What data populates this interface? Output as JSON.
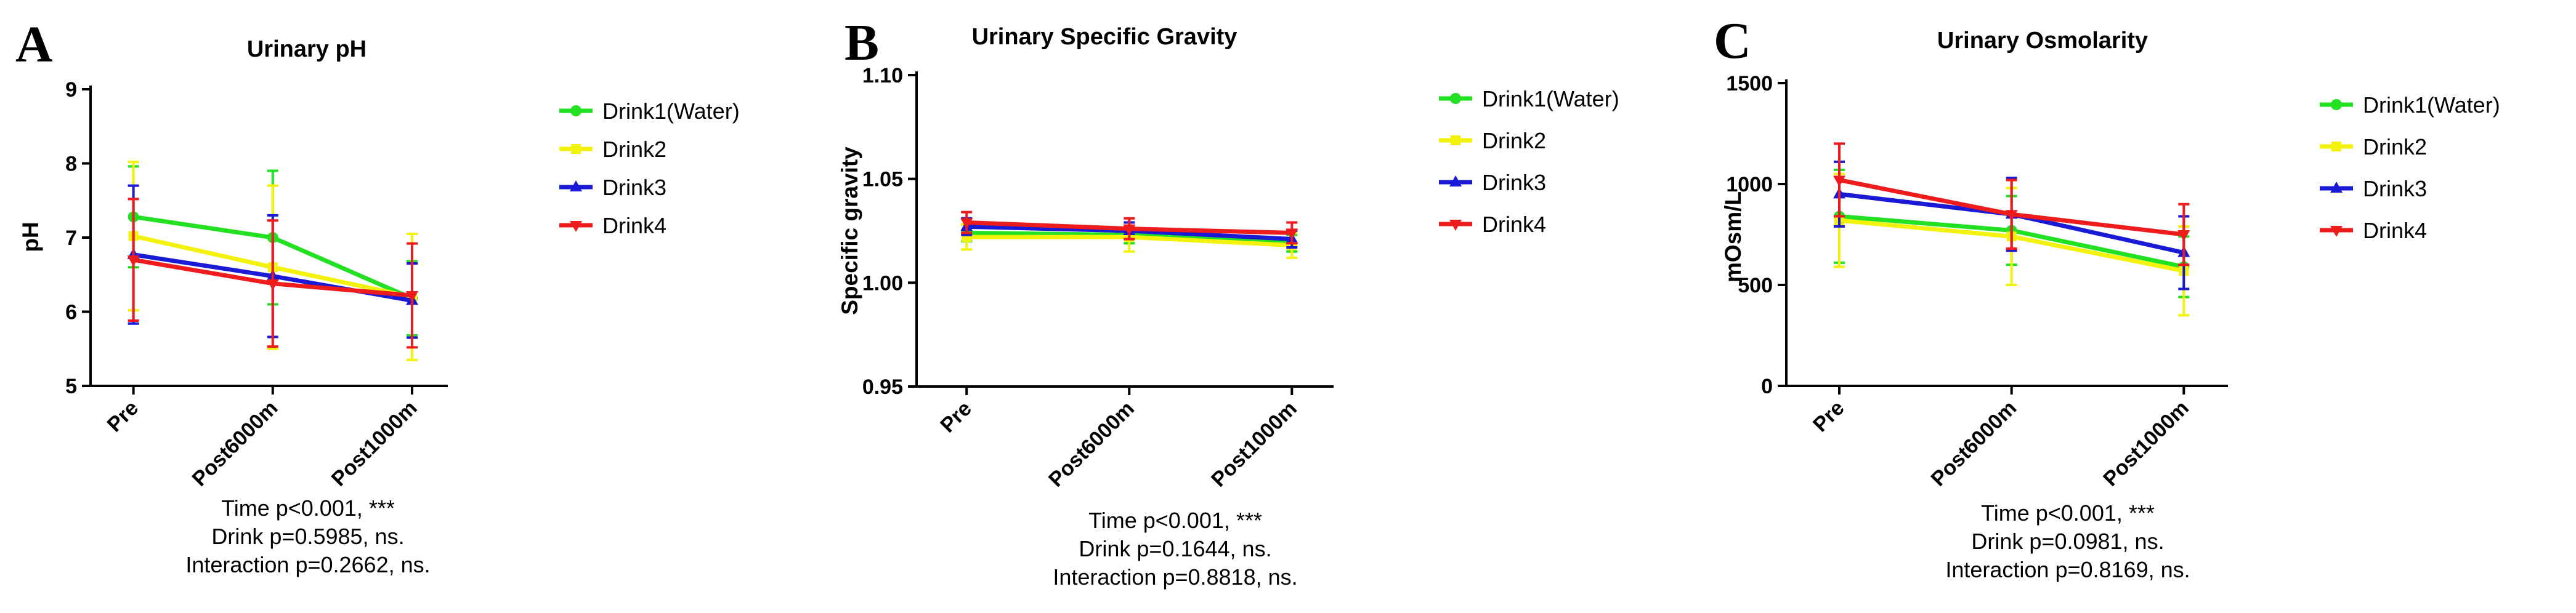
{
  "chart_data": [
    {
      "type": "line",
      "panel": "A",
      "title": "Urinary pH",
      "xlabel": "",
      "ylabel": "pH",
      "categories": [
        "Pre",
        "Post6000m",
        "Post1000m"
      ],
      "ylim": [
        5,
        9
      ],
      "yticks": [
        5,
        6,
        7,
        8,
        9
      ],
      "series": [
        {
          "name": "Drink1(Water)",
          "color": "#22e022",
          "marker": "circle",
          "values": [
            7.28,
            7.0,
            6.18
          ],
          "err": [
            0.68,
            0.9,
            0.5
          ]
        },
        {
          "name": "Drink2",
          "color": "#f2f20a",
          "marker": "square",
          "values": [
            7.02,
            6.6,
            6.2
          ],
          "err": [
            1.0,
            1.1,
            0.85
          ]
        },
        {
          "name": "Drink3",
          "color": "#1a1ad6",
          "marker": "triangle-up",
          "values": [
            6.77,
            6.48,
            6.15
          ],
          "err": [
            0.93,
            0.82,
            0.5
          ]
        },
        {
          "name": "Drink4",
          "color": "#ee1c1c",
          "marker": "triangle-down",
          "values": [
            6.7,
            6.38,
            6.22
          ],
          "err": [
            0.82,
            0.85,
            0.7
          ]
        }
      ],
      "stats": [
        "Time p<0.001, ***",
        "Drink p=0.5985, ns.",
        "Interaction p=0.2662, ns."
      ]
    },
    {
      "type": "line",
      "panel": "B",
      "title": "Urinary Specific Gravity",
      "xlabel": "",
      "ylabel": "Specific gravity",
      "categories": [
        "Pre",
        "Post6000m",
        "Post1000m"
      ],
      "ylim": [
        0.95,
        1.1
      ],
      "yticks": [
        "0.95",
        "1.00",
        "1.05",
        "1.10"
      ],
      "series": [
        {
          "name": "Drink1(Water)",
          "color": "#22e022",
          "marker": "circle",
          "values": [
            1.024,
            1.023,
            1.019
          ],
          "err": [
            0.004,
            0.004,
            0.004
          ]
        },
        {
          "name": "Drink2",
          "color": "#f2f20a",
          "marker": "square",
          "values": [
            1.022,
            1.022,
            1.018
          ],
          "err": [
            0.006,
            0.007,
            0.006
          ]
        },
        {
          "name": "Drink3",
          "color": "#1a1ad6",
          "marker": "triangle-up",
          "values": [
            1.027,
            1.025,
            1.021
          ],
          "err": [
            0.004,
            0.004,
            0.004
          ]
        },
        {
          "name": "Drink4",
          "color": "#ee1c1c",
          "marker": "triangle-down",
          "values": [
            1.029,
            1.026,
            1.024
          ],
          "err": [
            0.005,
            0.005,
            0.005
          ]
        }
      ],
      "stats": [
        "Time p<0.001, ***",
        "Drink p=0.1644, ns.",
        "Interaction p=0.8818, ns."
      ]
    },
    {
      "type": "line",
      "panel": "C",
      "title": "Urinary Osmolarity",
      "xlabel": "",
      "ylabel": "mOsm/L",
      "categories": [
        "Pre",
        "Post6000m",
        "Post1000m"
      ],
      "ylim": [
        0,
        1500
      ],
      "yticks": [
        0,
        500,
        1000,
        1500
      ],
      "series": [
        {
          "name": "Drink1(Water)",
          "color": "#22e022",
          "marker": "circle",
          "values": [
            840,
            770,
            590
          ],
          "err": [
            230,
            170,
            150
          ]
        },
        {
          "name": "Drink2",
          "color": "#f2f20a",
          "marker": "square",
          "values": [
            820,
            740,
            570
          ],
          "err": [
            230,
            240,
            220
          ]
        },
        {
          "name": "Drink3",
          "color": "#1a1ad6",
          "marker": "triangle-up",
          "values": [
            950,
            850,
            660
          ],
          "err": [
            160,
            180,
            180
          ]
        },
        {
          "name": "Drink4",
          "color": "#ee1c1c",
          "marker": "triangle-down",
          "values": [
            1020,
            850,
            750
          ],
          "err": [
            180,
            170,
            150
          ]
        }
      ],
      "stats": [
        "Time p<0.001, ***",
        "Drink p=0.0981, ns.",
        "Interaction p=0.8169, ns."
      ]
    }
  ]
}
